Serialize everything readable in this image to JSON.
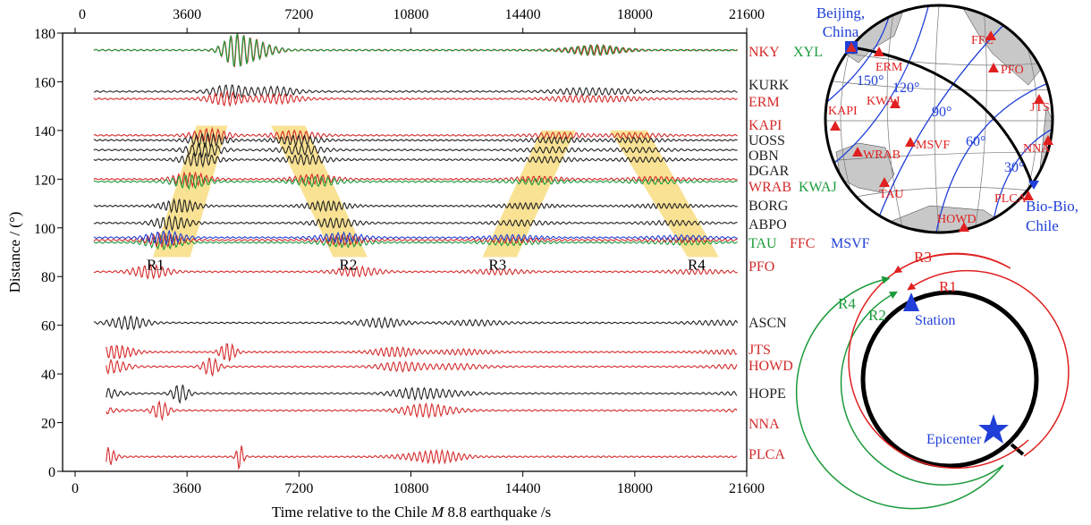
{
  "chart_data": {
    "type": "line",
    "title": "",
    "xlabel_prefix": "Time relative to the Chile ",
    "xlabel_italic": "M",
    "xlabel_suffix": " 8.8 earthquake /s",
    "ylabel": "Distance / (°)",
    "xlim": [
      0,
      21600
    ],
    "ylim": [
      0,
      180
    ],
    "xticks": [
      0,
      3600,
      7200,
      10800,
      14400,
      18000,
      21600
    ],
    "xtick_labels": [
      "0",
      "3600",
      "7200",
      "10800",
      "14400",
      "18000",
      "21600"
    ],
    "yticks": [
      0,
      20,
      40,
      60,
      80,
      100,
      120,
      140,
      160,
      180
    ],
    "ytick_labels": [
      "0",
      "20",
      "40",
      "60",
      "80",
      "100",
      "120",
      "140",
      "160",
      "180"
    ],
    "colors": {
      "red": "#d42a2a",
      "black": "#222222",
      "green": "#1a9a3a",
      "blue": "#1f3fd8",
      "band": "#f6d35a"
    },
    "traces": [
      {
        "name": "NKY",
        "distance": 173,
        "color": "red"
      },
      {
        "name": "XYL",
        "distance": 173,
        "color": "green"
      },
      {
        "name": "KURK",
        "distance": 156,
        "color": "black"
      },
      {
        "name": "ERM",
        "distance": 153,
        "color": "red"
      },
      {
        "name": "KAPI",
        "distance": 138,
        "color": "red"
      },
      {
        "name": "UOSS",
        "distance": 136,
        "color": "black"
      },
      {
        "name": "OBN",
        "distance": 132,
        "color": "black"
      },
      {
        "name": "DGAR",
        "distance": 128,
        "color": "black"
      },
      {
        "name": "WRAB",
        "distance": 120,
        "color": "red"
      },
      {
        "name": "KWAJ",
        "distance": 119,
        "color": "green"
      },
      {
        "name": "BORG",
        "distance": 109,
        "color": "black"
      },
      {
        "name": "ABPO",
        "distance": 102,
        "color": "black"
      },
      {
        "name": "TAU",
        "distance": 94,
        "color": "green"
      },
      {
        "name": "FFC",
        "distance": 95,
        "color": "red"
      },
      {
        "name": "MSVF",
        "distance": 96,
        "color": "blue"
      },
      {
        "name": "PFO",
        "distance": 82,
        "color": "red"
      },
      {
        "name": "ASCN",
        "distance": 61,
        "color": "black"
      },
      {
        "name": "JTS",
        "distance": 49,
        "color": "red"
      },
      {
        "name": "HOWD",
        "distance": 43,
        "color": "red"
      },
      {
        "name": "HOPE",
        "distance": 32,
        "color": "black"
      },
      {
        "name": "NNA",
        "distance": 25,
        "color": "red"
      },
      {
        "name": "PLCA",
        "distance": 6,
        "color": "red"
      }
    ],
    "phases": [
      {
        "label": "R1",
        "label_time": 2300,
        "label_distance": 85,
        "band": [
          [
            2500,
            88
          ],
          [
            3700,
            88
          ],
          [
            4900,
            142
          ],
          [
            3900,
            142
          ]
        ]
      },
      {
        "label": "R2",
        "label_time": 8500,
        "label_distance": 85,
        "band": [
          [
            6300,
            142
          ],
          [
            7400,
            142
          ],
          [
            9400,
            88
          ],
          [
            8300,
            88
          ]
        ]
      },
      {
        "label": "R3",
        "label_time": 13300,
        "label_distance": 85,
        "band": [
          [
            13100,
            88
          ],
          [
            14200,
            88
          ],
          [
            16100,
            140
          ],
          [
            15000,
            140
          ]
        ]
      },
      {
        "label": "R4",
        "label_time": 19700,
        "label_distance": 85,
        "band": [
          [
            17200,
            140
          ],
          [
            18400,
            140
          ],
          [
            20700,
            88
          ],
          [
            19700,
            88
          ]
        ]
      }
    ]
  },
  "map": {
    "source_label_line1": "Beijing,",
    "source_label_line2": "China",
    "epicenter_label_line1": "Bio-Bio,",
    "epicenter_label_line2": "Chile",
    "contours": [
      "150°",
      "120°",
      "90°",
      "60°",
      "30°"
    ],
    "stations": [
      "FFC",
      "ERM",
      "PFO",
      "KWAJ",
      "KAPI",
      "JTS",
      "WRAB",
      "MSVF",
      "NNA",
      "TAU",
      "PLCA",
      "HOWD"
    ]
  },
  "orbit_diagram": {
    "labels": [
      "R1",
      "R2",
      "R3",
      "R4"
    ],
    "station_label": "Station",
    "epicenter_label": "Epicenter"
  }
}
